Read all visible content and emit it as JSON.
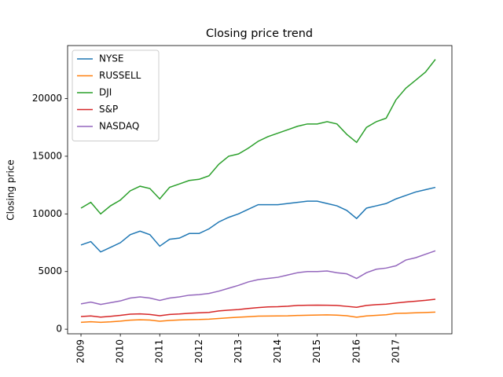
{
  "chart_data": {
    "type": "line",
    "title": "Closing price trend",
    "y_label": "Closing price",
    "x": [
      2009,
      2009.25,
      2009.5,
      2009.75,
      2010,
      2010.25,
      2010.5,
      2010.75,
      2011,
      2011.25,
      2011.5,
      2011.75,
      2012,
      2012.25,
      2012.5,
      2012.75,
      2013,
      2013.25,
      2013.5,
      2013.75,
      2014,
      2014.25,
      2014.5,
      2014.75,
      2015,
      2015.25,
      2015.5,
      2015.75,
      2016,
      2016.25,
      2016.5,
      2016.75,
      2017,
      2017.25,
      2017.5,
      2017.75,
      2018
    ],
    "series": [
      {
        "name": "NYSE",
        "color": "#1f77b4",
        "values": [
          7300,
          7600,
          6700,
          7100,
          7500,
          8200,
          8500,
          8200,
          7200,
          7800,
          7900,
          8300,
          8300,
          8700,
          9300,
          9700,
          10000,
          10400,
          10800,
          10800,
          10800,
          10900,
          11000,
          11100,
          11100,
          10900,
          10700,
          10300,
          9600,
          10500,
          10700,
          10900,
          11300,
          11600,
          11900,
          12100,
          12300
        ]
      },
      {
        "name": "RUSSELL",
        "color": "#ff7f0e",
        "values": [
          600,
          650,
          600,
          640,
          700,
          780,
          820,
          790,
          690,
          760,
          800,
          830,
          840,
          870,
          930,
          990,
          1040,
          1080,
          1130,
          1140,
          1150,
          1160,
          1190,
          1210,
          1230,
          1240,
          1220,
          1170,
          1040,
          1150,
          1200,
          1250,
          1370,
          1390,
          1420,
          1450,
          1480
        ]
      },
      {
        "name": "DJI",
        "color": "#2ca02c",
        "values": [
          10500,
          11000,
          10000,
          10700,
          11200,
          12000,
          12400,
          12200,
          11300,
          12300,
          12600,
          12900,
          13000,
          13300,
          14300,
          15000,
          15200,
          15700,
          16300,
          16700,
          17000,
          17300,
          17600,
          17800,
          17800,
          18000,
          17800,
          16900,
          16200,
          17500,
          18000,
          18300,
          19900,
          20900,
          21600,
          22300,
          23400
        ]
      },
      {
        "name": "S&P",
        "color": "#d62728",
        "values": [
          1100,
          1150,
          1050,
          1120,
          1200,
          1300,
          1330,
          1280,
          1170,
          1280,
          1320,
          1380,
          1420,
          1460,
          1580,
          1650,
          1700,
          1800,
          1870,
          1930,
          1950,
          1990,
          2060,
          2080,
          2090,
          2080,
          2060,
          1980,
          1900,
          2060,
          2130,
          2170,
          2270,
          2360,
          2430,
          2500,
          2600
        ]
      },
      {
        "name": "NASDAQ",
        "color": "#9467bd",
        "values": [
          2200,
          2350,
          2150,
          2300,
          2450,
          2700,
          2800,
          2700,
          2500,
          2700,
          2800,
          2950,
          3000,
          3100,
          3300,
          3550,
          3800,
          4100,
          4300,
          4400,
          4500,
          4700,
          4900,
          5000,
          5000,
          5050,
          4900,
          4800,
          4400,
          4900,
          5200,
          5300,
          5500,
          6000,
          6200,
          6500,
          6800
        ]
      }
    ],
    "xlim": [
      2008.66,
      2018.42
    ],
    "xticks": [
      2009,
      2010,
      2011,
      2012,
      2013,
      2014,
      2015,
      2016,
      2017
    ],
    "ylim": [
      -400,
      24600
    ],
    "yticks": [
      0,
      5000,
      10000,
      15000,
      20000
    ],
    "legend": "upper-left"
  }
}
